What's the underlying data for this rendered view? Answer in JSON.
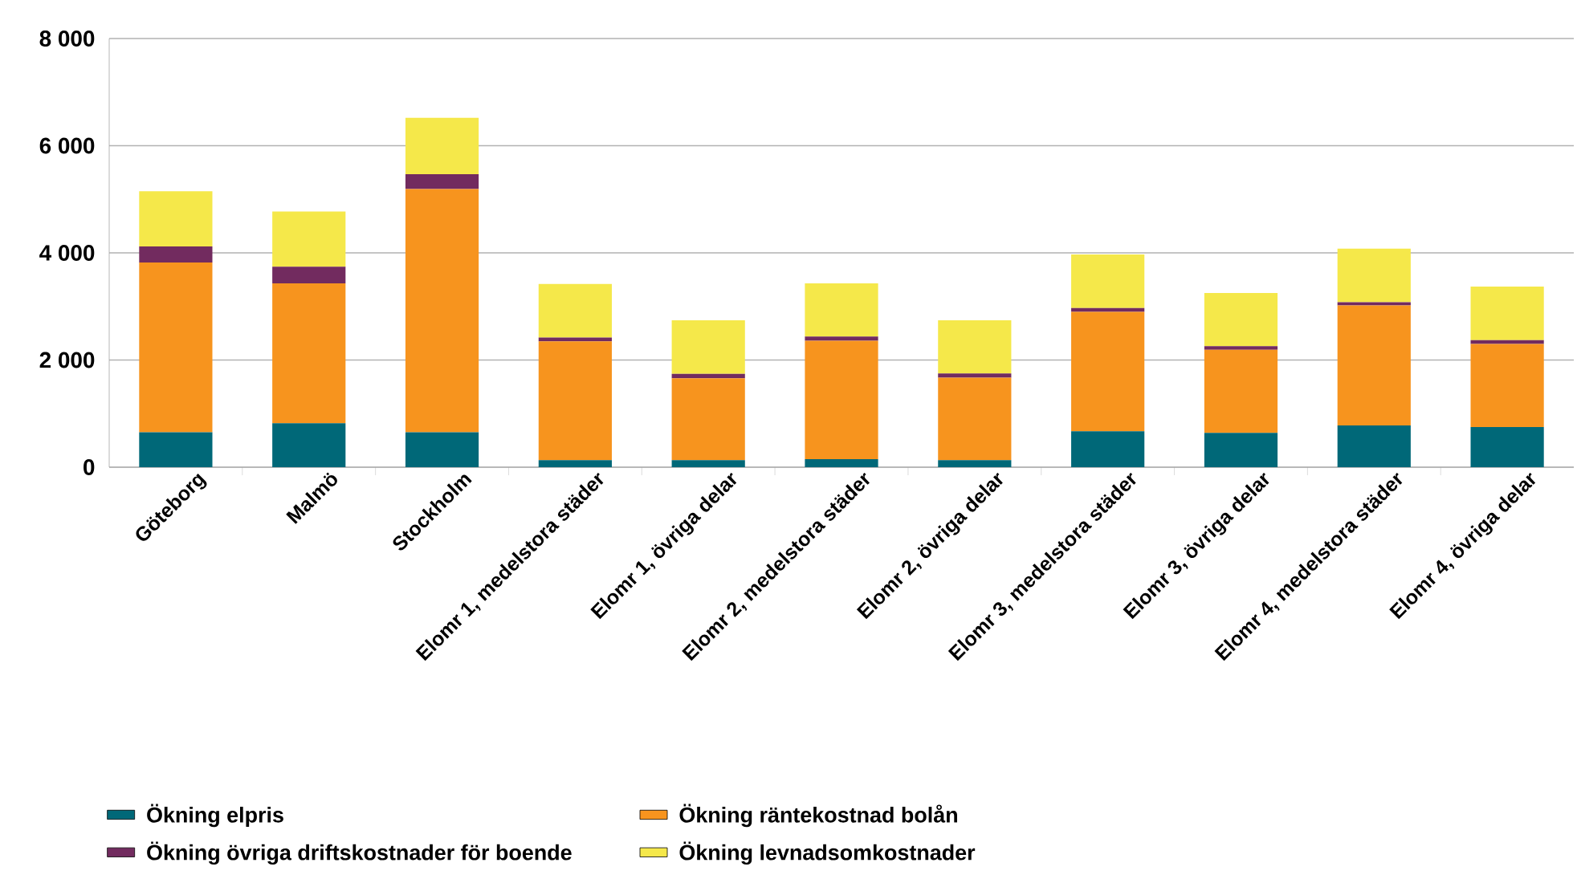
{
  "chart_data": {
    "type": "bar",
    "stacked": true,
    "grid": "y",
    "legend": "bottom",
    "categories": [
      "Göteborg",
      "Malmö",
      "Stockholm",
      "Elomr 1, medelstora städer",
      "Elomr 1, övriga delar",
      "Elomr 2, medelstora städer",
      "Elomr 2, övriga delar",
      "Elomr 3, medelstora städer",
      "Elomr 3, övriga delar",
      "Elomr 4, medelstora städer",
      "Elomr 4, övriga delar"
    ],
    "ylim": [
      0,
      8000
    ],
    "yticks": [
      0,
      {
        "value": 2000,
        "label": "2 000"
      },
      {
        "value": 4000,
        "label": "4 000"
      },
      {
        "value": 6000,
        "label": "6 000"
      },
      {
        "value": 8000,
        "label": "8 000"
      }
    ],
    "series": [
      {
        "name": "Ökning elpris",
        "color": "#006878",
        "values": [
          650,
          820,
          650,
          130,
          130,
          150,
          130,
          670,
          640,
          780,
          750
        ]
      },
      {
        "name": "Ökning räntekostnad  bolån",
        "color": "#f7941e",
        "values": [
          3170,
          2610,
          4540,
          2220,
          1530,
          2210,
          1540,
          2230,
          1550,
          2240,
          1550
        ]
      },
      {
        "name": "Ökning övriga driftskostnader för boende",
        "color": "#722b5f",
        "values": [
          300,
          310,
          280,
          70,
          80,
          80,
          80,
          70,
          70,
          60,
          70
        ]
      },
      {
        "name": "Ökning levnadsomkostnader",
        "color": "#f5e84a",
        "values": [
          1030,
          1030,
          1050,
          1000,
          1000,
          990,
          990,
          1000,
          990,
          1000,
          1000
        ]
      }
    ]
  }
}
